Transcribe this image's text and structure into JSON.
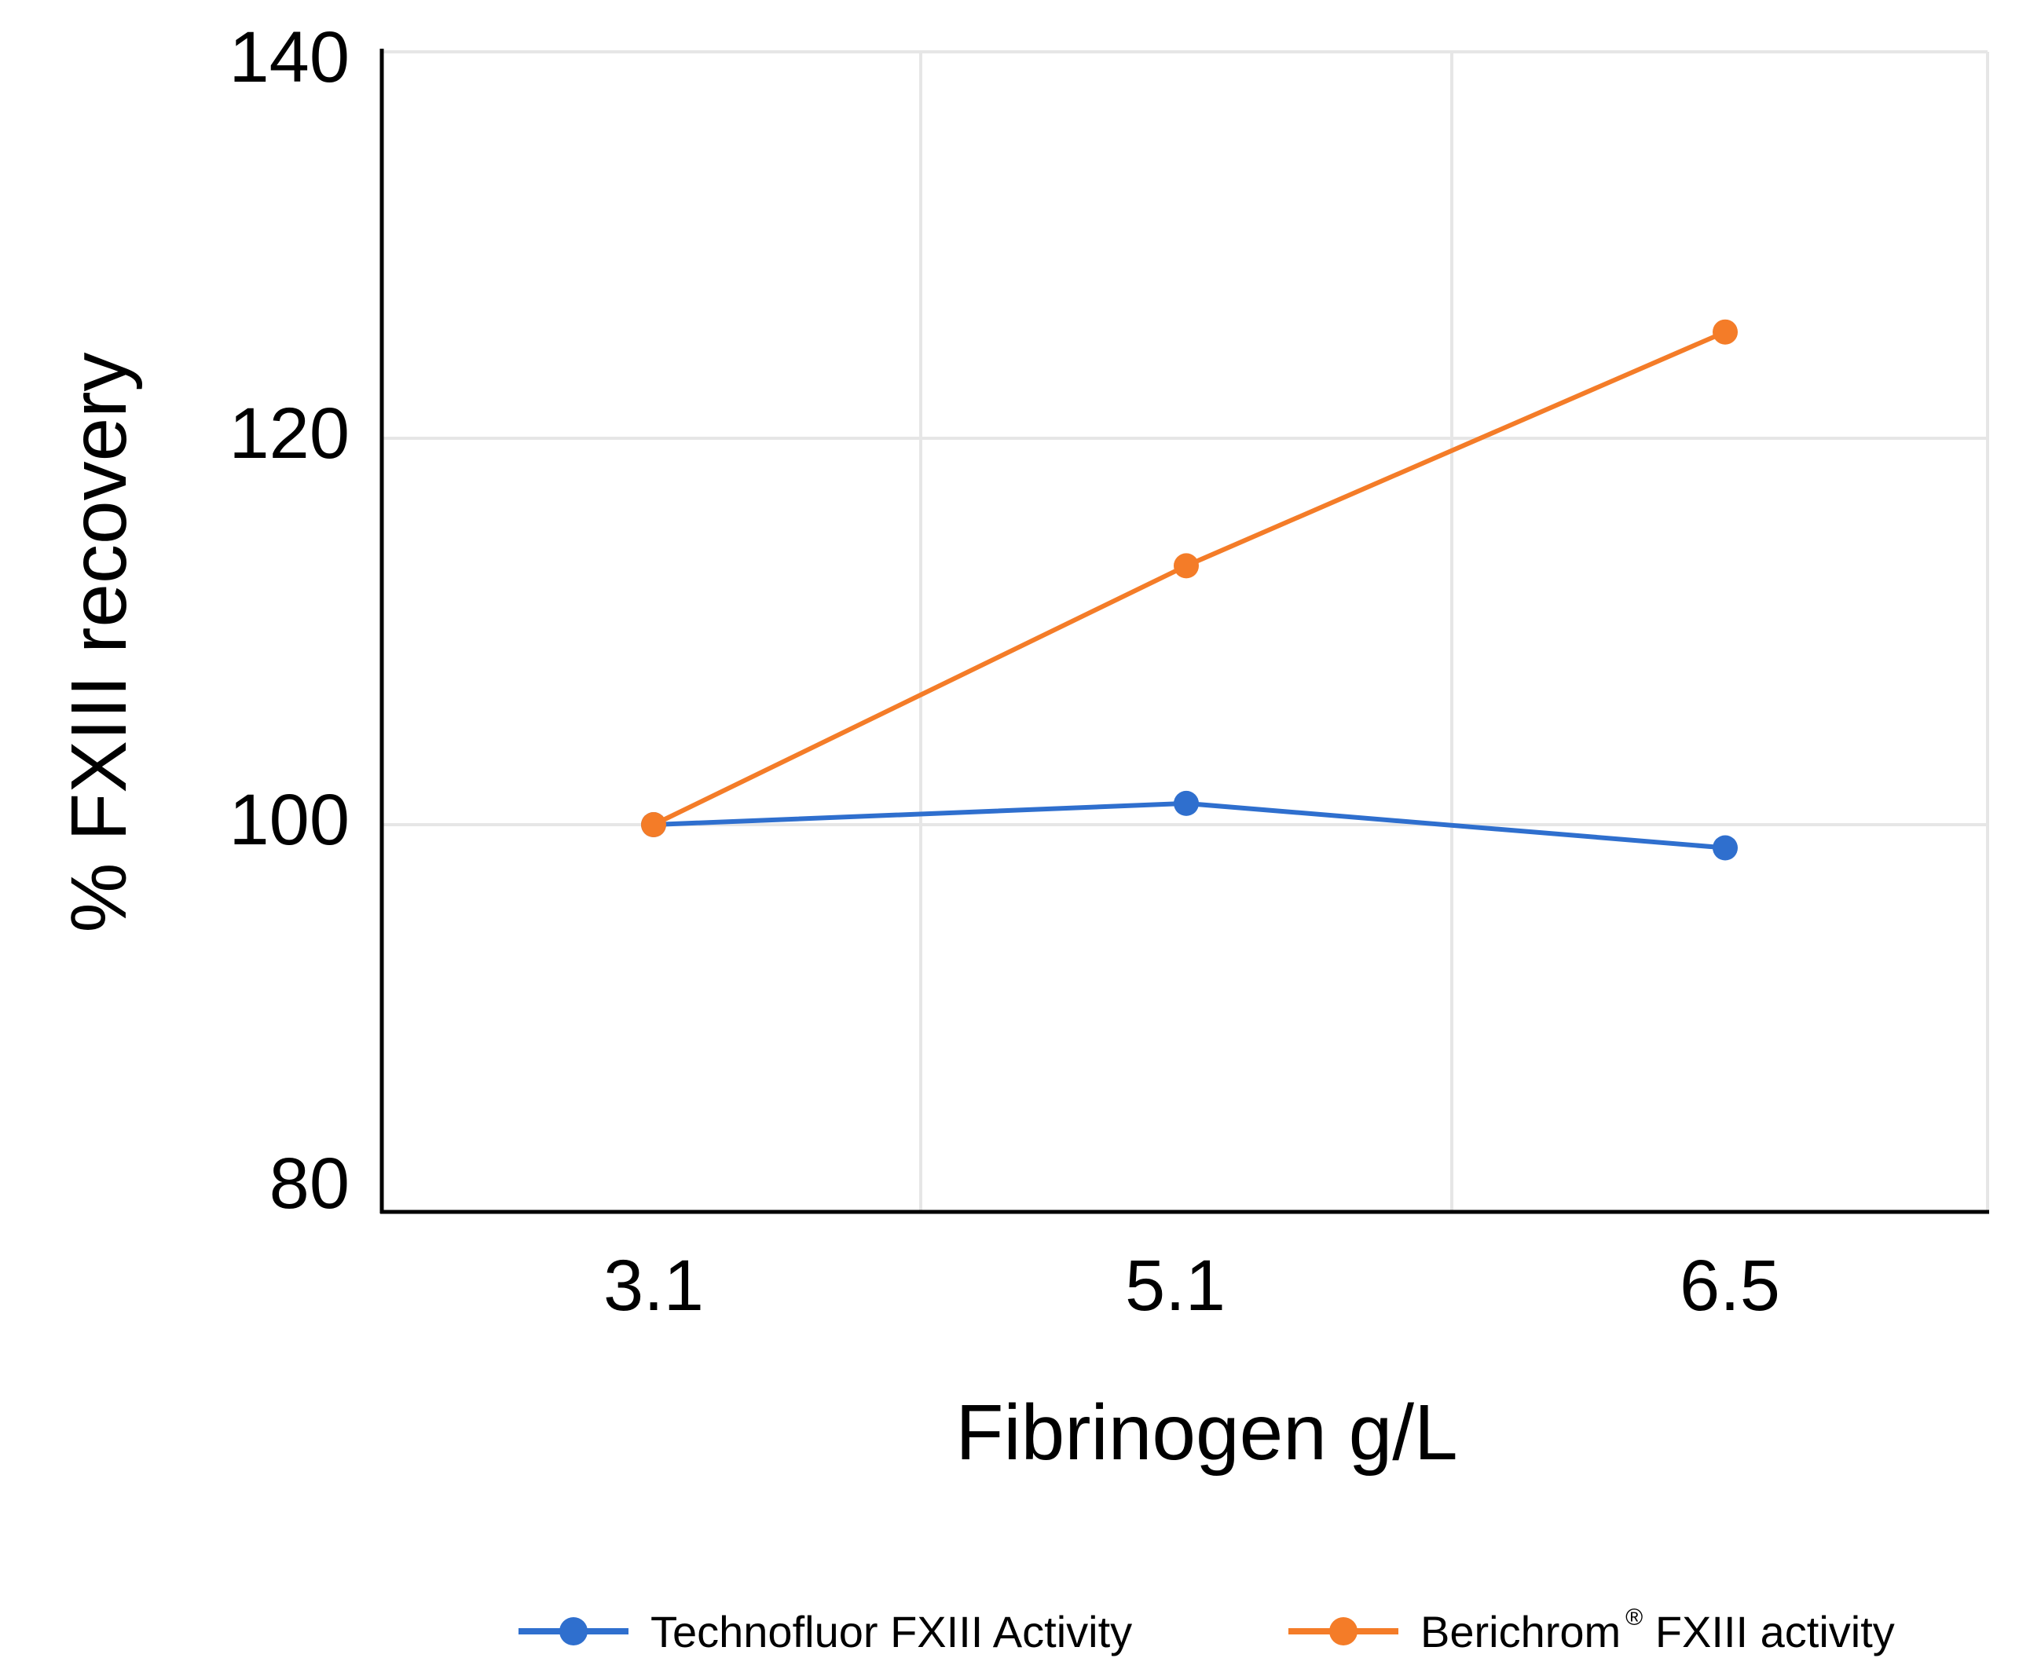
{
  "chart_data": {
    "type": "line",
    "categories": [
      "3.1",
      "5.1",
      "6.5"
    ],
    "series": [
      {
        "name": "Technofluor FXIII Activity",
        "values": [
          100,
          101.1,
          98.8
        ],
        "color": "#2f6fce"
      },
      {
        "name": "Berichrom",
        "name_sup": "®",
        "name_suffix": " FXIII activity",
        "values": [
          100,
          113.4,
          125.5
        ],
        "color": "#f47c28"
      }
    ],
    "xlabel": "Fibrinogen g/L",
    "ylabel": "% FXIII recovery",
    "ylim": [
      80,
      140
    ],
    "yticks": [
      "140",
      "120",
      "100",
      "80"
    ],
    "grid": true,
    "legend_position": "bottom"
  }
}
